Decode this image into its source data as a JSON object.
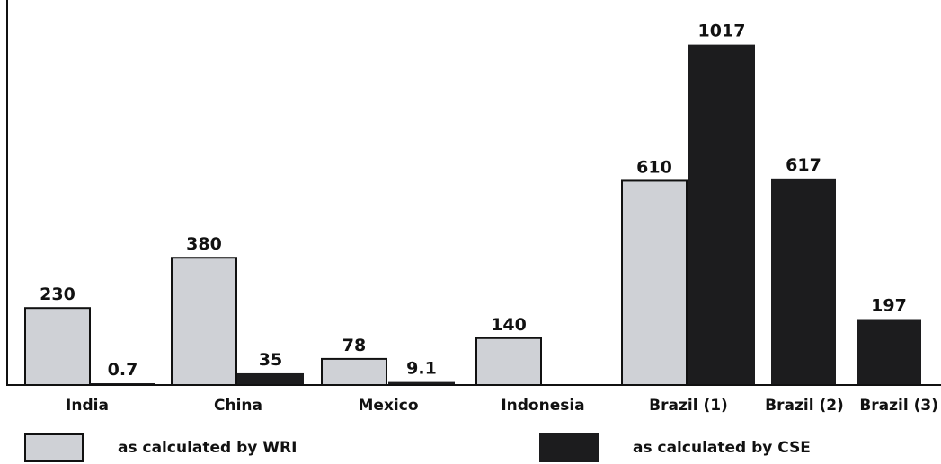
{
  "chart_data": {
    "type": "bar",
    "categories": [
      "India",
      "China",
      "Mexico",
      "Indonesia",
      "Brazil (1)",
      "Brazil (2)",
      "Brazil (3)"
    ],
    "series": [
      {
        "name": "as calculated by WRI",
        "color": "#cfd1d6",
        "values": [
          230,
          380,
          78,
          140,
          610,
          null,
          null
        ]
      },
      {
        "name": "as calculated by CSE",
        "color": "#1c1c1e",
        "values": [
          0.7,
          35,
          9.1,
          null,
          1017,
          617,
          197
        ]
      }
    ],
    "value_labels": [
      [
        "230",
        "380",
        "78",
        "140",
        "610",
        "",
        ""
      ],
      [
        "0.7",
        "35",
        "9.1",
        "",
        "1017",
        "617",
        "197"
      ]
    ],
    "title": "",
    "xlabel": "",
    "ylabel": "",
    "ylim": [
      0,
      1150
    ],
    "grid": false,
    "legend_position": "bottom"
  }
}
